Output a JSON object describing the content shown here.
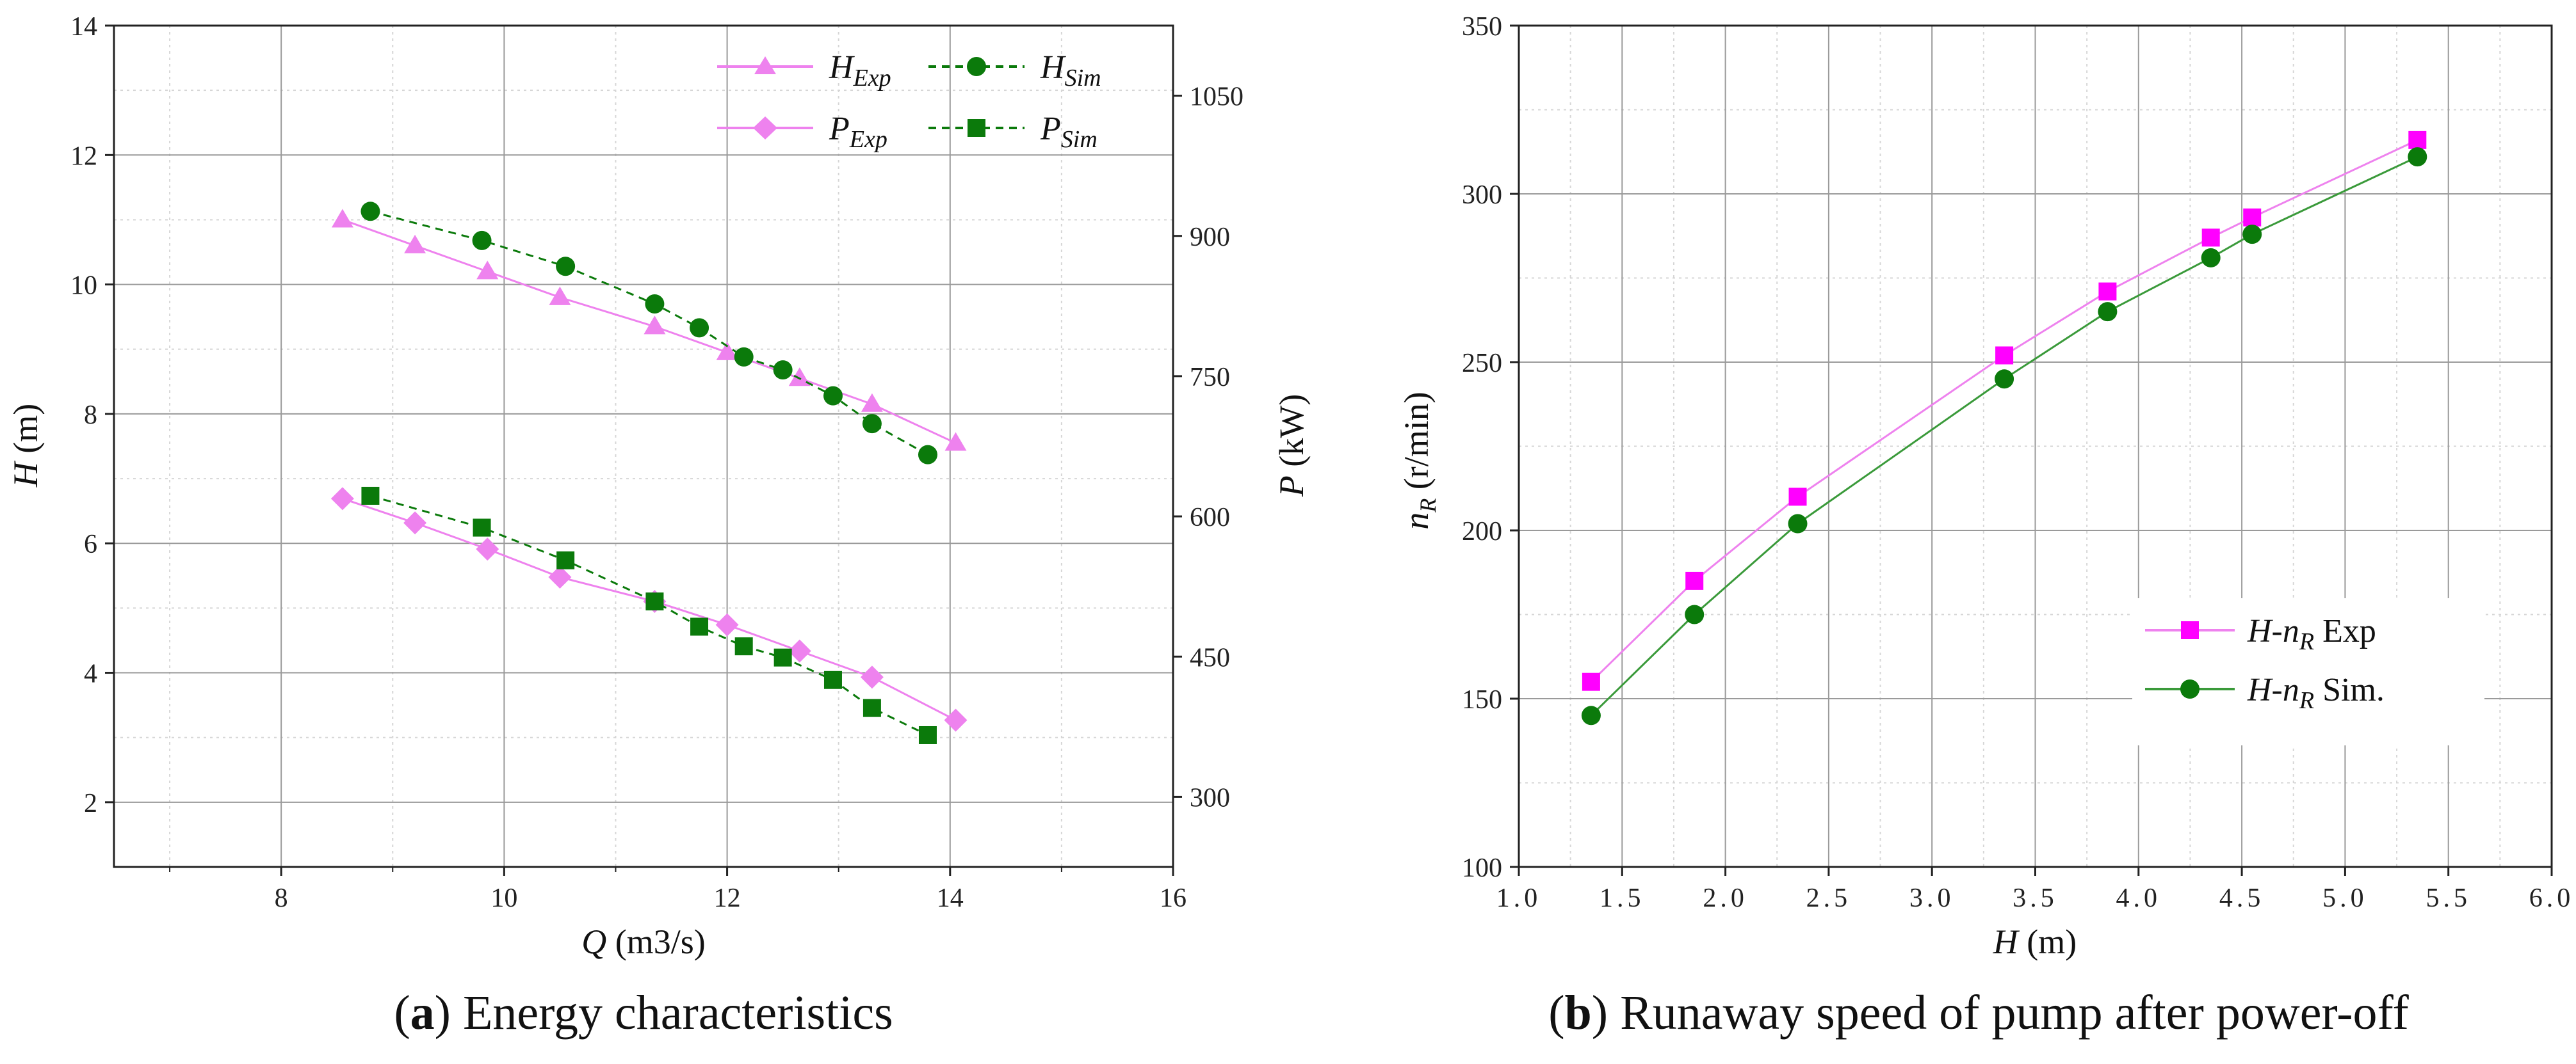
{
  "colors": {
    "exp": "#ee82ee",
    "sim": "#0b7a0b",
    "marker_exp_b": "#ff00ff",
    "sim_line_b": "#3a9a3a"
  },
  "captions": {
    "a_letter": "a",
    "a_text": " Energy characteristics",
    "b_letter": "b",
    "b_text": " Runaway speed of pump after power-off"
  },
  "chart_data": [
    {
      "type": "line",
      "title": "Energy characteristics",
      "xlabel_var": "Q",
      "xlabel_unit": " (m3/s)",
      "ylabel_var": "H",
      "ylabel_unit": " (m)",
      "y2label_var": "P",
      "y2label_unit": " (kW)",
      "xlim": [
        6.5,
        16
      ],
      "ylim": [
        1,
        14
      ],
      "y2lim": [
        225,
        1125
      ],
      "xticks": [
        8,
        10,
        12,
        14,
        16
      ],
      "yticks": [
        2,
        4,
        6,
        8,
        10,
        12,
        14
      ],
      "y2ticks": [
        300,
        450,
        600,
        750,
        900,
        1050
      ],
      "legend_loc": "top-right",
      "series": [
        {
          "name": "H_Exp",
          "base": "H",
          "sub": "Exp",
          "axis": "left",
          "marker": "triangle",
          "style": "solid",
          "color": "#ee82ee",
          "x": [
            8.55,
            9.2,
            9.85,
            10.5,
            11.35,
            12.0,
            12.65,
            13.3,
            14.05
          ],
          "y": [
            11.0,
            10.6,
            10.2,
            9.8,
            9.35,
            8.95,
            8.55,
            8.15,
            7.55
          ]
        },
        {
          "name": "H_Sim",
          "base": "H",
          "sub": "Sim",
          "axis": "left",
          "marker": "circle",
          "style": "dashed",
          "color": "#0b7a0b",
          "x": [
            8.8,
            9.8,
            10.55,
            11.35,
            11.75,
            12.15,
            12.5,
            12.95,
            13.3,
            13.8
          ],
          "y": [
            11.13,
            10.68,
            10.28,
            9.7,
            9.33,
            8.88,
            8.68,
            8.28,
            7.85,
            7.37
          ]
        },
        {
          "name": "P_Exp",
          "base": "P",
          "sub": "Exp",
          "axis": "right",
          "marker": "diamond",
          "style": "solid",
          "color": "#ee82ee",
          "x": [
            8.55,
            9.2,
            9.85,
            10.5,
            11.35,
            12.0,
            12.65,
            13.3,
            14.05
          ],
          "y": [
            619,
            593,
            565,
            535,
            509,
            484,
            456,
            428,
            382
          ]
        },
        {
          "name": "P_Sim",
          "base": "P",
          "sub": "Sim",
          "axis": "right",
          "marker": "square",
          "style": "dashed",
          "color": "#0b7a0b",
          "x": [
            8.8,
            9.8,
            10.55,
            11.35,
            11.75,
            12.15,
            12.5,
            12.95,
            13.3,
            13.8
          ],
          "y": [
            622,
            588,
            553,
            509,
            482,
            461,
            449,
            425,
            395,
            366
          ]
        }
      ]
    },
    {
      "type": "line",
      "title": "Runaway speed of pump after power-off",
      "xlabel_var": "H",
      "xlabel_unit": " (m)",
      "ylabel_var": "n",
      "ylabel_sub": "R",
      "ylabel_unit": " (r/min)",
      "xlim": [
        1.0,
        6.0
      ],
      "ylim": [
        100,
        350
      ],
      "xticks": [
        "1.0",
        "1.5",
        "2.0",
        "2.5",
        "3.0",
        "3.5",
        "4.0",
        "4.5",
        "5.0",
        "5.5",
        "6.0"
      ],
      "yticks": [
        100,
        150,
        200,
        250,
        300,
        350
      ],
      "legend_loc": "bottom-right",
      "series": [
        {
          "name": "H-n_R Exp",
          "pre": "H-n",
          "sub": "R",
          "post": " Exp",
          "marker": "square",
          "color": "#ff00ff",
          "line_color": "#ee82ee",
          "x": [
            1.35,
            1.85,
            2.35,
            3.35,
            3.85,
            4.35,
            4.55,
            5.35
          ],
          "y": [
            155,
            185,
            210,
            252,
            271,
            287,
            293,
            316
          ]
        },
        {
          "name": "H-n_R Sim.",
          "pre": "H-n",
          "sub": "R",
          "post": " Sim.",
          "marker": "circle",
          "color": "#0b7a0b",
          "line_color": "#3a9a3a",
          "x": [
            1.35,
            1.85,
            2.35,
            3.35,
            3.85,
            4.35,
            4.55,
            5.35
          ],
          "y": [
            145,
            175,
            202,
            245,
            265,
            281,
            288,
            311
          ]
        }
      ]
    }
  ]
}
